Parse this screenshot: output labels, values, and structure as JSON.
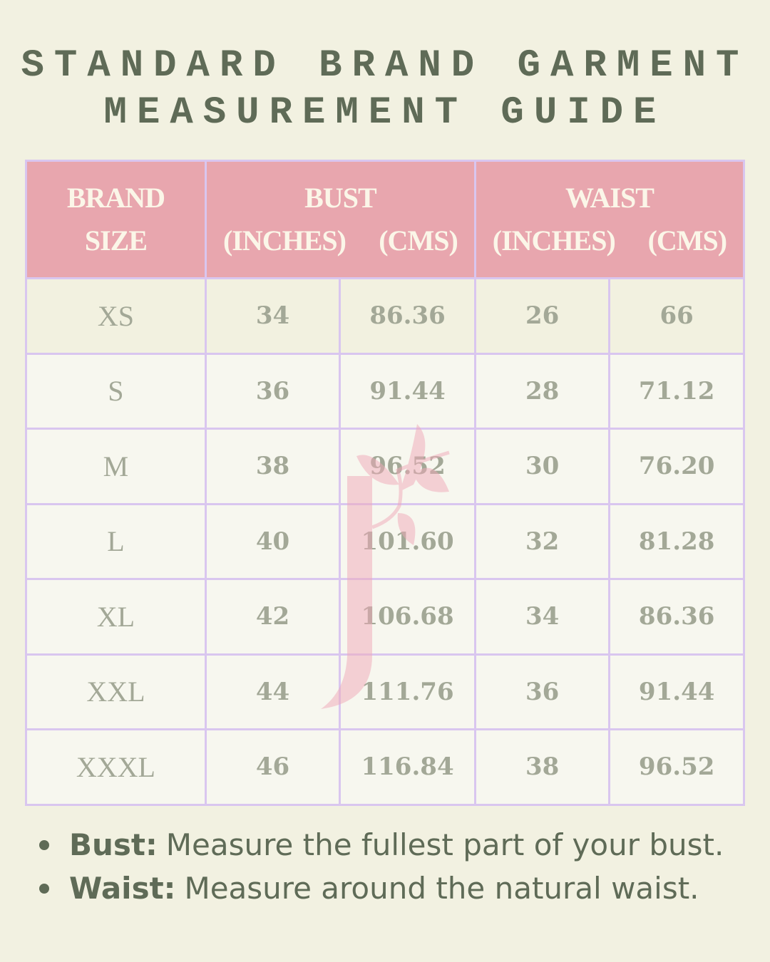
{
  "title": {
    "line1": "STANDARD BRAND GARMENT",
    "line2": "MEASUREMENT GUIDE"
  },
  "table": {
    "headers": {
      "size_line1": "BRAND",
      "size_line2": "SIZE",
      "bust": "BUST",
      "waist": "WAIST",
      "inches": "(INCHES)",
      "cms": "(CMS)"
    },
    "rows": [
      {
        "size": "XS",
        "bust_in": "34",
        "bust_cm": "86.36",
        "waist_in": "26",
        "waist_cm": "66"
      },
      {
        "size": "S",
        "bust_in": "36",
        "bust_cm": "91.44",
        "waist_in": "28",
        "waist_cm": "71.12"
      },
      {
        "size": "M",
        "bust_in": "38",
        "bust_cm": "96.52",
        "waist_in": "30",
        "waist_cm": "76.20"
      },
      {
        "size": "L",
        "bust_in": "40",
        "bust_cm": "101.60",
        "waist_in": "32",
        "waist_cm": "81.28"
      },
      {
        "size": "XL",
        "bust_in": "42",
        "bust_cm": "106.68",
        "waist_in": "34",
        "waist_cm": "86.36"
      },
      {
        "size": "XXL",
        "bust_in": "44",
        "bust_cm": "111.76",
        "waist_in": "36",
        "waist_cm": "91.44"
      },
      {
        "size": "XXXL",
        "bust_in": "46",
        "bust_cm": "116.84",
        "waist_in": "38",
        "waist_cm": "96.52"
      }
    ]
  },
  "notes": [
    {
      "label": "Bust:",
      "text": "Measure the fullest part of your bust."
    },
    {
      "label": "Waist:",
      "text": "Measure around the natural waist."
    }
  ],
  "watermark": {
    "letter": "J",
    "icon": "leaf-branch-j-logo"
  },
  "colors": {
    "background": "#f2f1e1",
    "header": "#e8a6ae",
    "grid": "#d9c6ef",
    "text": "#5f6b57",
    "cell_text": "#a3a897"
  }
}
